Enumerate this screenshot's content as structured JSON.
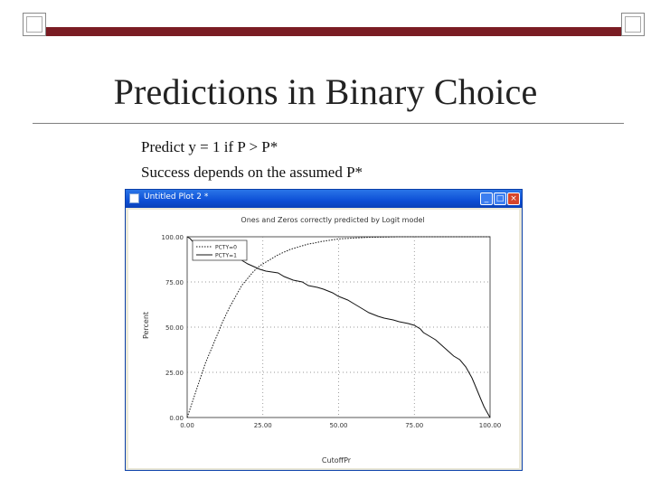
{
  "slide": {
    "title": "Predictions in Binary Choice",
    "bullets": [
      "Predict y = 1 if P > P*",
      "Success depends on the assumed P*"
    ]
  },
  "colors": {
    "accent_bar": "#7a1c23",
    "window_title": "#0d4fd6"
  },
  "window": {
    "title": "Untitled Plot 2 *",
    "minimize_icon": "minimize-icon",
    "maximize_icon": "maximize-icon",
    "close_icon": "close-icon"
  },
  "chart_data": {
    "type": "line",
    "title": "Ones and Zeros correctly predicted by Logit model",
    "xlabel": "CutoffPr",
    "ylabel": "Percent",
    "xlim": [
      0,
      100
    ],
    "ylim": [
      0,
      100
    ],
    "x_ticks": [
      "0.00",
      "25.00",
      "50.00",
      "75.00",
      "100.00"
    ],
    "y_ticks": [
      "0.00",
      "25.00",
      "50.00",
      "75.00",
      "100.00"
    ],
    "grid": true,
    "legend": "top-left",
    "series": [
      {
        "name": "PCTY=0",
        "style": "dotted",
        "x": [
          0,
          2,
          4,
          6,
          8,
          10,
          12,
          14,
          16,
          18,
          20,
          22,
          24,
          26,
          28,
          30,
          32,
          34,
          36,
          38,
          40,
          42,
          44,
          46,
          48,
          50,
          55,
          60,
          70,
          80,
          90,
          100
        ],
        "y": [
          0,
          10,
          20,
          30,
          38,
          46,
          54,
          61,
          67,
          73,
          77,
          81,
          84,
          86,
          88,
          90,
          91.5,
          93,
          94,
          95,
          96,
          96.5,
          97.3,
          97.8,
          98.3,
          98.8,
          99.3,
          99.7,
          100,
          100,
          100,
          100
        ]
      },
      {
        "name": "PCTY=1",
        "style": "solid",
        "x": [
          0,
          1,
          2,
          3,
          5,
          8,
          10,
          12,
          14,
          16,
          18,
          20,
          22,
          24,
          26,
          30,
          32,
          35,
          38,
          40,
          43,
          45,
          48,
          50,
          53,
          55,
          58,
          60,
          63,
          65,
          68,
          70,
          73,
          75,
          77,
          78,
          80,
          82,
          84,
          86,
          88,
          90,
          92,
          94,
          95,
          96,
          97,
          98,
          99,
          100
        ],
        "y": [
          100,
          99,
          97,
          95,
          94,
          93.5,
          93,
          92,
          90,
          89,
          87,
          85,
          83.5,
          82,
          81,
          80,
          78,
          76,
          75,
          73,
          72,
          71,
          69,
          67,
          65,
          63,
          60,
          58,
          56,
          55,
          54,
          53,
          52,
          51,
          49,
          47,
          45,
          43,
          40,
          37,
          34,
          32,
          28,
          22,
          18,
          14,
          10,
          6,
          3,
          0
        ]
      }
    ]
  }
}
